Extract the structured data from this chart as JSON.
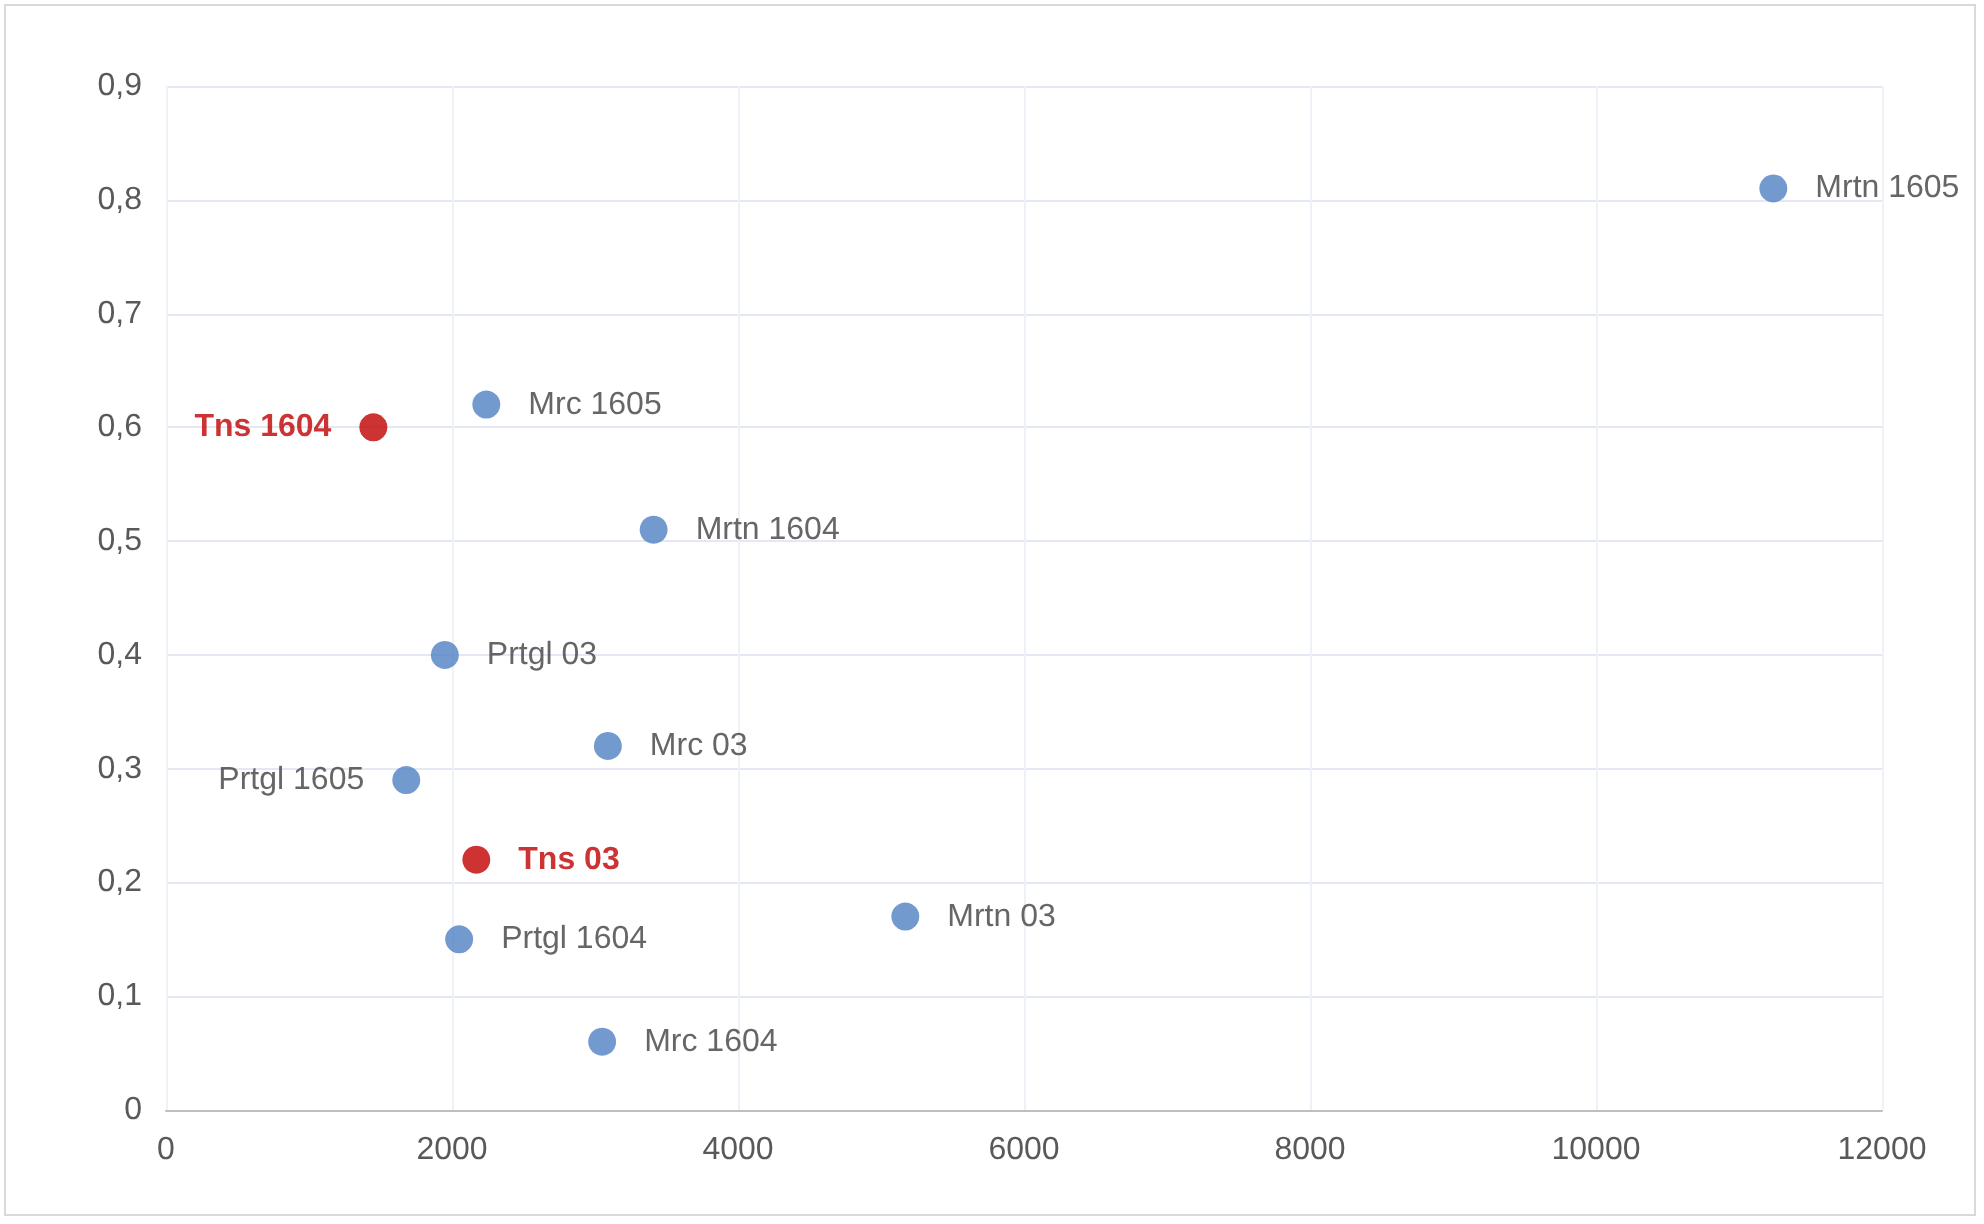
{
  "chart_data": {
    "type": "scatter",
    "series": [
      {
        "color": "#5081c2",
        "x": [
          11240,
          2240,
          3410,
          1950,
          3090,
          1680,
          2050,
          5170,
          3050
        ],
        "values": [
          0.81,
          0.62,
          0.51,
          0.4,
          0.32,
          0.29,
          0.15,
          0.17,
          0.06
        ],
        "value_labels": [
          "Mrtn 1605",
          "Mrc 1605",
          "Mrtn 1604",
          "Prtgl 03",
          "Mrc 03",
          "Prtgl 1605",
          "Prtgl 1604",
          "Mrtn 03",
          "Mrc 1604"
        ]
      },
      {
        "color": "#c00000",
        "x": [
          1450,
          2170
        ],
        "values": [
          0.6,
          0.22
        ],
        "value_labels": [
          "Tns 1604",
          "Tns 03"
        ]
      }
    ],
    "xlim": [
      0,
      12000
    ],
    "xticks": [
      0,
      2000,
      4000,
      6000,
      8000,
      10000,
      12000
    ],
    "ylim": [
      0,
      0.9
    ],
    "yticks": [
      0,
      {
        "value": 0.1,
        "label": "0,1"
      },
      {
        "value": 0.2,
        "label": "0,2"
      },
      {
        "value": 0.3,
        "label": "0,3"
      },
      {
        "value": 0.4,
        "label": "0,4"
      },
      {
        "value": 0.5,
        "label": "0,5"
      },
      {
        "value": 0.6,
        "label": "0,6"
      },
      {
        "value": 0.7,
        "label": "0,7"
      },
      {
        "value": 0.8,
        "label": "0,8"
      },
      {
        "value": 0.9,
        "label": "0,9"
      }
    ],
    "grid": true,
    "marker": "circle"
  }
}
